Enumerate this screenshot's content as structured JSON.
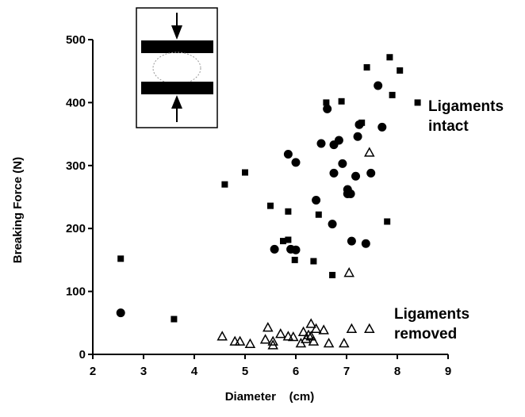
{
  "chart_data": {
    "type": "scatter",
    "title": "",
    "xlabel": "Diameter    (cm)",
    "ylabel": "Breaking   Force   (N)",
    "xlim": [
      2,
      9
    ],
    "ylim": [
      0,
      500
    ],
    "x_ticks": [
      2,
      3,
      4,
      5,
      6,
      7,
      8,
      9
    ],
    "y_ticks": [
      0,
      100,
      200,
      300,
      400,
      500
    ],
    "grid": false,
    "legend": "none",
    "annotations": [
      {
        "lines": [
          "Ligaments",
          "intact"
        ],
        "x": 8.6,
        "y": 390
      },
      {
        "lines": [
          "Ligaments",
          "removed"
        ],
        "x": 8.4,
        "y": 40
      }
    ],
    "inset": {
      "description": "compression between two plates",
      "icon": "compression-diagram-icon"
    },
    "series": [
      {
        "marker": "square",
        "color": "#000000",
        "points": [
          [
            2.55,
            152
          ],
          [
            3.6,
            56
          ],
          [
            4.6,
            270
          ],
          [
            5.0,
            289
          ],
          [
            5.5,
            236
          ],
          [
            5.75,
            180
          ],
          [
            5.85,
            182
          ],
          [
            5.85,
            227
          ],
          [
            5.98,
            150
          ],
          [
            6.35,
            148
          ],
          [
            6.45,
            222
          ],
          [
            6.6,
            400
          ],
          [
            6.72,
            126
          ],
          [
            6.9,
            402
          ],
          [
            7.3,
            368
          ],
          [
            7.4,
            456
          ],
          [
            7.8,
            211
          ],
          [
            7.85,
            472
          ],
          [
            7.9,
            412
          ],
          [
            8.05,
            451
          ],
          [
            8.4,
            400
          ]
        ]
      },
      {
        "marker": "circle",
        "color": "#000000",
        "points": [
          [
            2.55,
            66
          ],
          [
            5.58,
            167
          ],
          [
            5.85,
            318
          ],
          [
            5.9,
            167
          ],
          [
            6.0,
            305
          ],
          [
            6.0,
            166
          ],
          [
            6.4,
            245
          ],
          [
            6.5,
            335
          ],
          [
            6.62,
            390
          ],
          [
            6.72,
            207
          ],
          [
            6.75,
            333
          ],
          [
            6.75,
            288
          ],
          [
            6.85,
            340
          ],
          [
            6.92,
            303
          ],
          [
            7.02,
            262
          ],
          [
            7.02,
            255
          ],
          [
            7.08,
            255
          ],
          [
            7.1,
            180
          ],
          [
            7.18,
            283
          ],
          [
            7.22,
            346
          ],
          [
            7.25,
            365
          ],
          [
            7.38,
            176
          ],
          [
            7.48,
            288
          ],
          [
            7.62,
            427
          ],
          [
            7.7,
            361
          ]
        ]
      },
      {
        "marker": "open-triangle",
        "color": "#000000",
        "points": [
          [
            4.55,
            28
          ],
          [
            4.8,
            20
          ],
          [
            4.9,
            20
          ],
          [
            5.1,
            16
          ],
          [
            5.4,
            23
          ],
          [
            5.45,
            42
          ],
          [
            5.55,
            14
          ],
          [
            5.55,
            20
          ],
          [
            5.7,
            32
          ],
          [
            5.85,
            28
          ],
          [
            5.95,
            27
          ],
          [
            6.1,
            17
          ],
          [
            6.15,
            35
          ],
          [
            6.2,
            24
          ],
          [
            6.25,
            30
          ],
          [
            6.3,
            48
          ],
          [
            6.3,
            28
          ],
          [
            6.35,
            20
          ],
          [
            6.4,
            40
          ],
          [
            6.55,
            38
          ],
          [
            6.65,
            17
          ],
          [
            6.95,
            17
          ],
          [
            7.05,
            129
          ],
          [
            7.1,
            40
          ],
          [
            7.45,
            40
          ],
          [
            7.45,
            320
          ]
        ]
      }
    ]
  }
}
